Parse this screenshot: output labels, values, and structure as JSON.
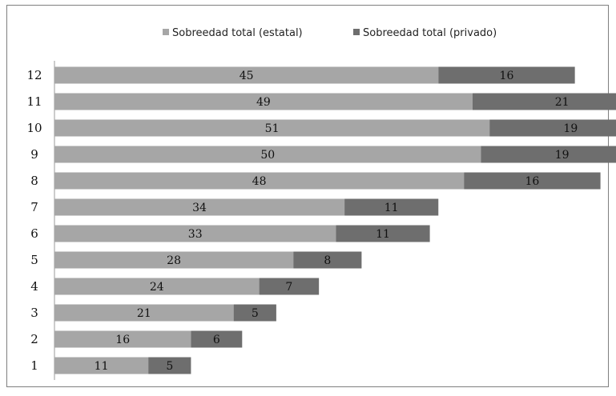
{
  "chart_data": {
    "type": "bar",
    "orientation": "horizontal",
    "stacked": true,
    "categories": [
      "12",
      "11",
      "10",
      "9",
      "8",
      "7",
      "6",
      "5",
      "4",
      "3",
      "2",
      "1"
    ],
    "series": [
      {
        "name": "Sobreedad total (estatal)",
        "color": "#a6a6a6",
        "values": [
          45,
          49,
          51,
          50,
          48,
          34,
          33,
          28,
          24,
          21,
          16,
          11
        ]
      },
      {
        "name": "Sobreedad total (privado)",
        "color": "#6e6e6e",
        "values": [
          16,
          21,
          19,
          19,
          16,
          11,
          11,
          8,
          7,
          5,
          6,
          5
        ]
      }
    ],
    "legend": "top",
    "grid": false,
    "xlim": [
      0,
      70
    ]
  }
}
